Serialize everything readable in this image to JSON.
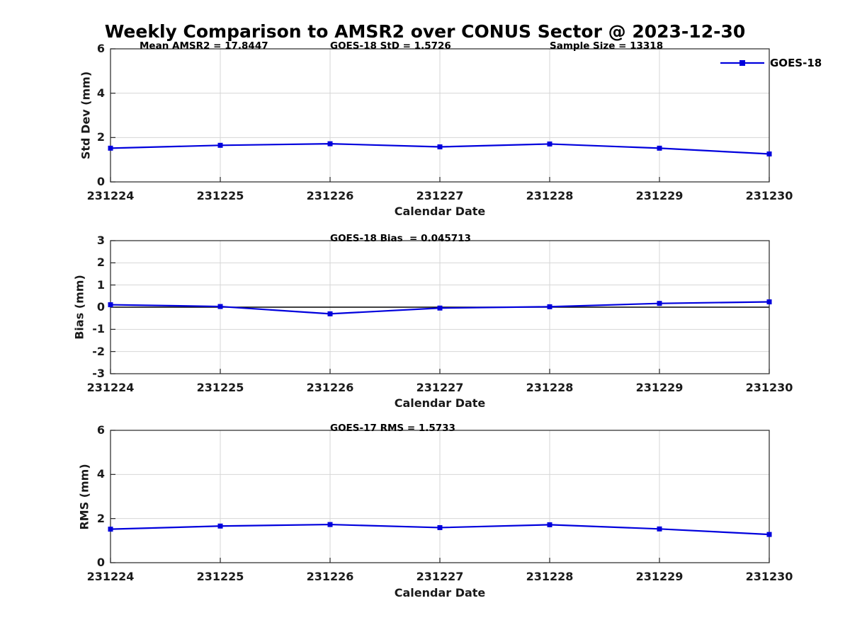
{
  "title": "Weekly Comparison to AMSR2 over CONUS Sector @ 2023-12-30",
  "legend": {
    "label": "GOES-18"
  },
  "colors": {
    "line": "#0000dd",
    "grid": "#d6d6d6",
    "axis": "#262626",
    "text": "#1a1a1a",
    "zero_line": "#000000"
  },
  "chart_data": [
    {
      "type": "line",
      "annotations": [
        "Mean AMSR2 = 17.8447",
        "GOES-18 StD = 1.5726",
        "Sample Size = 13318"
      ],
      "x_categories": [
        "231224",
        "231225",
        "231226",
        "231227",
        "231228",
        "231229",
        "231230"
      ],
      "series": [
        {
          "name": "GOES-18",
          "values": [
            1.52,
            1.65,
            1.72,
            1.58,
            1.71,
            1.52,
            1.26
          ]
        }
      ],
      "xlabel": "Calendar Date",
      "ylabel": "Std Dev (mm)",
      "ylim": [
        0,
        6
      ],
      "yticks": [
        0,
        2,
        4,
        6
      ],
      "grid": true,
      "zero_line": false,
      "legend": "GOES-18",
      "legend_position": "top-right"
    },
    {
      "type": "line",
      "annotations": [
        "GOES-18 Bias  = 0.045713"
      ],
      "x_categories": [
        "231224",
        "231225",
        "231226",
        "231227",
        "231228",
        "231229",
        "231230"
      ],
      "series": [
        {
          "name": "GOES-18",
          "values": [
            0.11,
            0.03,
            -0.3,
            -0.04,
            0.02,
            0.17,
            0.24
          ]
        }
      ],
      "xlabel": "Calendar Date",
      "ylabel": "Bias (mm)",
      "ylim": [
        -3,
        3
      ],
      "yticks": [
        -3,
        -2,
        -1,
        0,
        1,
        2,
        3
      ],
      "grid": true,
      "zero_line": true
    },
    {
      "type": "line",
      "annotations": [
        "GOES-17 RMS = 1.5733"
      ],
      "x_categories": [
        "231224",
        "231225",
        "231226",
        "231227",
        "231228",
        "231229",
        "231230"
      ],
      "series": [
        {
          "name": "GOES-18",
          "values": [
            1.52,
            1.66,
            1.73,
            1.59,
            1.72,
            1.53,
            1.28
          ]
        }
      ],
      "xlabel": "Calendar Date",
      "ylabel": "RMS (mm)",
      "ylim": [
        0,
        6
      ],
      "yticks": [
        0,
        2,
        4,
        6
      ],
      "grid": true,
      "zero_line": false
    }
  ]
}
